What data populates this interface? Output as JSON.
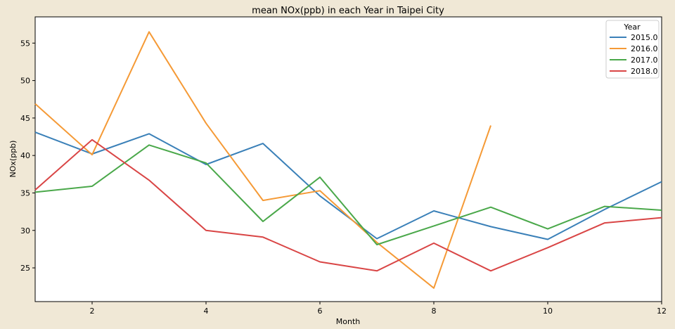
{
  "chart_data": {
    "type": "line",
    "title": "mean NOx(ppb) in each Year in Taipei City",
    "xlabel": "Month",
    "ylabel": "NOx(ppb)",
    "xlim": [
      1,
      12
    ],
    "ylim": [
      20.5,
      58.5
    ],
    "xticks": [
      2,
      4,
      6,
      8,
      10,
      12
    ],
    "yticks": [
      25,
      30,
      35,
      40,
      45,
      50,
      55
    ],
    "grid": false,
    "legend": {
      "title": "Year",
      "placement": "top-right"
    },
    "series": [
      {
        "name": "2015.0",
        "color": "#3a80b8",
        "x": [
          1,
          2,
          3,
          4,
          5,
          6,
          7,
          8,
          9,
          10,
          11,
          12
        ],
        "y": [
          43.1,
          40.2,
          42.9,
          38.8,
          41.6,
          34.6,
          28.9,
          32.6,
          30.5,
          28.8,
          32.8,
          36.5
        ]
      },
      {
        "name": "2016.0",
        "color": "#f59a36",
        "x": [
          1,
          2,
          3,
          4,
          5,
          6,
          7,
          8,
          9
        ],
        "y": [
          46.9,
          40.1,
          56.5,
          44.3,
          34.0,
          35.3,
          28.4,
          22.3,
          44.0
        ]
      },
      {
        "name": "2017.0",
        "color": "#4aa84a",
        "x": [
          1,
          2,
          3,
          4,
          5,
          6,
          7,
          8,
          9,
          10,
          11,
          12
        ],
        "y": [
          35.1,
          35.9,
          41.4,
          39.0,
          31.2,
          37.1,
          28.1,
          30.6,
          33.1,
          30.2,
          33.2,
          32.7
        ]
      },
      {
        "name": "2018.0",
        "color": "#d94545",
        "x": [
          1,
          2,
          3,
          4,
          5,
          6,
          7,
          8,
          9,
          10,
          11,
          12
        ],
        "y": [
          35.4,
          42.1,
          36.7,
          30.0,
          29.1,
          25.8,
          24.6,
          28.3,
          24.6,
          27.7,
          31.0,
          31.7
        ]
      }
    ]
  }
}
